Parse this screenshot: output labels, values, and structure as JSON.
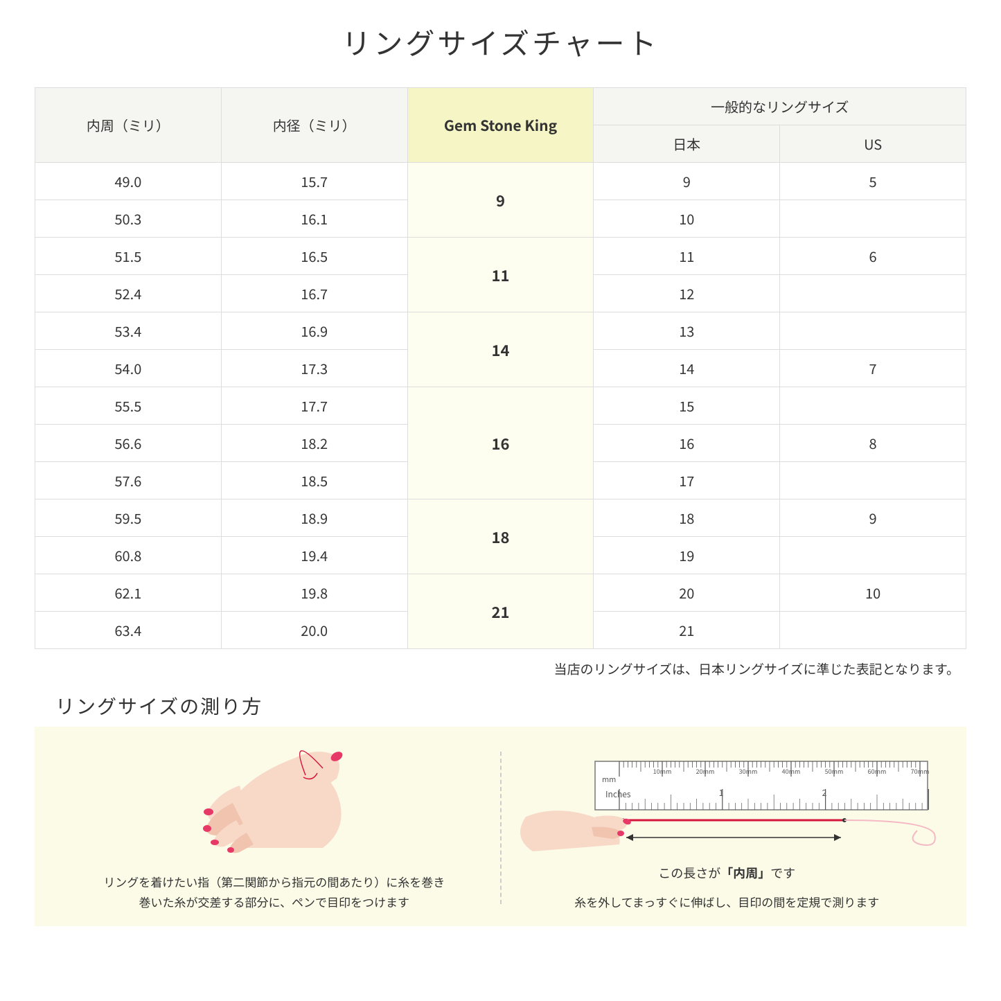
{
  "title": "リングサイズチャート",
  "headers": {
    "circumference": "内周（ミリ）",
    "diameter": "内径（ミリ）",
    "gsk": "Gem Stone King",
    "general": "一般的なリングサイズ",
    "japan": "日本",
    "us": "US"
  },
  "groups": [
    {
      "gsk": "9",
      "rows": [
        {
          "c": "49.0",
          "d": "15.7",
          "jp": "9",
          "us": "5"
        },
        {
          "c": "50.3",
          "d": "16.1",
          "jp": "10",
          "us": ""
        }
      ]
    },
    {
      "gsk": "11",
      "rows": [
        {
          "c": "51.5",
          "d": "16.5",
          "jp": "11",
          "us": "6"
        },
        {
          "c": "52.4",
          "d": "16.7",
          "jp": "12",
          "us": ""
        }
      ]
    },
    {
      "gsk": "14",
      "rows": [
        {
          "c": "53.4",
          "d": "16.9",
          "jp": "13",
          "us": ""
        },
        {
          "c": "54.0",
          "d": "17.3",
          "jp": "14",
          "us": "7"
        }
      ]
    },
    {
      "gsk": "16",
      "rows": [
        {
          "c": "55.5",
          "d": "17.7",
          "jp": "15",
          "us": ""
        },
        {
          "c": "56.6",
          "d": "18.2",
          "jp": "16",
          "us": "8"
        },
        {
          "c": "57.6",
          "d": "18.5",
          "jp": "17",
          "us": ""
        }
      ]
    },
    {
      "gsk": "18",
      "rows": [
        {
          "c": "59.5",
          "d": "18.9",
          "jp": "18",
          "us": "9"
        },
        {
          "c": "60.8",
          "d": "19.4",
          "jp": "19",
          "us": ""
        }
      ]
    },
    {
      "gsk": "21",
      "rows": [
        {
          "c": "62.1",
          "d": "19.8",
          "jp": "20",
          "us": "10"
        },
        {
          "c": "63.4",
          "d": "20.0",
          "jp": "21",
          "us": ""
        }
      ]
    }
  ],
  "note": "当店のリングサイズは、日本リングサイズに準じた表記となります。",
  "howto": {
    "title": "リングサイズの測り方",
    "left_line1": "リングを着けたい指（第二関節から指元の間あたり）に糸を巻き",
    "left_line2": "巻いた糸が交差する部分に、ペンで目印をつけます",
    "ruler_label_prefix": "この長さが",
    "ruler_label_bold": "「内周」",
    "ruler_label_suffix": "です",
    "right_text": "糸を外してまっすぐに伸ばし、目印の間を定規で測ります",
    "ruler_ticks": [
      "10mm",
      "20mm",
      "30mm",
      "40mm",
      "50mm",
      "60mm",
      "70mm"
    ],
    "ruler_mm": "mm",
    "ruler_inches": "Inches",
    "ruler_inch_marks": [
      "1",
      "2"
    ]
  },
  "colors": {
    "header_bg": "#f5f5f2",
    "gsk_header_bg": "#f5f5c6",
    "gsk_cell_bg": "#fefef0",
    "border": "#dddddd",
    "howto_bg": "#fcfbe8",
    "skin": "#f8d9c8",
    "skin_dark": "#f0c4af",
    "nail": "#e63968",
    "thread": "#d4163c",
    "ruler_bg": "#ffffff",
    "ruler_border": "#666666"
  }
}
